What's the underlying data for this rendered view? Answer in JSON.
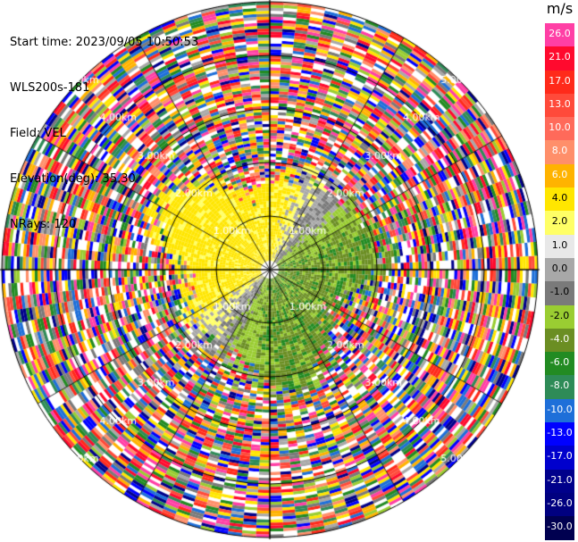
{
  "header": {
    "start_time": "Start time: 2023/09/05 10:50:53",
    "instrument": "WLS200s-181",
    "field": "Field: VEL",
    "elevation": "Elevation(deg): 35.30",
    "nrays": "NRays: 120"
  },
  "colorbar": {
    "unit": "m/s",
    "levels": [
      {
        "label": "26.0",
        "color": "#ff3fa5"
      },
      {
        "label": "21.0",
        "color": "#ff0a2e"
      },
      {
        "label": "17.0",
        "color": "#ff2a1a"
      },
      {
        "label": "13.0",
        "color": "#ff4a3a"
      },
      {
        "label": "10.0",
        "color": "#ff6a5a"
      },
      {
        "label": "8.0",
        "color": "#ff8f6a"
      },
      {
        "label": "6.0",
        "color": "#ffb300"
      },
      {
        "label": "4.0",
        "color": "#ffe600"
      },
      {
        "label": "2.0",
        "color": "#ffff66"
      },
      {
        "label": "1.0",
        "color": "#e8e8e8"
      },
      {
        "label": "0.0",
        "color": "#a8a8a8"
      },
      {
        "label": "-1.0",
        "color": "#7a7a7a"
      },
      {
        "label": "-2.0",
        "color": "#9acd32"
      },
      {
        "label": "-4.0",
        "color": "#6b8e23"
      },
      {
        "label": "-6.0",
        "color": "#228b22"
      },
      {
        "label": "-8.0",
        "color": "#2e8b57"
      },
      {
        "label": "-10.0",
        "color": "#1e6fd9"
      },
      {
        "label": "-13.0",
        "color": "#0000ff"
      },
      {
        "label": "-17.0",
        "color": "#0000cd"
      },
      {
        "label": "-21.0",
        "color": "#00008b"
      },
      {
        "label": "-26.0",
        "color": "#000080"
      },
      {
        "label": "-30.0",
        "color": "#000050"
      }
    ]
  },
  "chart_data": {
    "type": "heatmap",
    "projection": "polar PPI scan",
    "n_rays": 120,
    "range_rings_km": [
      {
        "label": "1.00km",
        "km": 1
      },
      {
        "label": "2.00km",
        "km": 2
      },
      {
        "label": "3.00km",
        "km": 3
      },
      {
        "label": "4.00km",
        "km": 4
      },
      {
        "label": "5.00km",
        "km": 5
      }
    ],
    "max_range_km": 5,
    "field": "VEL",
    "units": "m/s",
    "pattern_description": "near range: positive velocities (yellow) to the west/north, negative (green) to the east/south, gray near zero; beyond about 2 km: noisy multicolor values"
  }
}
